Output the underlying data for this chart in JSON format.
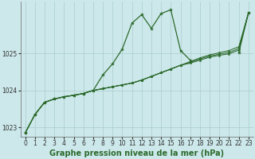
{
  "bg_color": "#cce8ea",
  "grid_color": "#aacccc",
  "line_color": "#2d6a2d",
  "xlabel": "Graphe pression niveau de la mer (hPa)",
  "xlim": [
    -0.5,
    23.5
  ],
  "ylim": [
    1022.75,
    1026.4
  ],
  "yticks": [
    1023,
    1024,
    1025
  ],
  "xticks": [
    0,
    1,
    2,
    3,
    4,
    5,
    6,
    7,
    8,
    9,
    10,
    11,
    12,
    13,
    14,
    15,
    16,
    17,
    18,
    19,
    20,
    21,
    22,
    23
  ],
  "main_curve": [
    1022.85,
    1023.35,
    1023.68,
    1023.77,
    1023.83,
    1023.87,
    1023.92,
    1024.0,
    1024.42,
    1024.72,
    1025.12,
    1025.82,
    1026.05,
    1025.68,
    1026.08,
    1026.18,
    1025.08,
    1024.82,
    null,
    null,
    null,
    null,
    1025.02,
    1026.1
  ],
  "line_a": [
    1022.85,
    1023.35,
    1023.68,
    1023.77,
    1023.83,
    1023.87,
    1023.92,
    1024.0,
    1024.05,
    1024.1,
    1024.15,
    1024.2,
    1024.28,
    1024.38,
    1024.48,
    1024.58,
    1024.68,
    1024.78,
    1024.88,
    1024.96,
    1025.02,
    1025.08,
    1025.18,
    1026.1
  ],
  "line_b": [
    1022.85,
    1023.35,
    1023.68,
    1023.77,
    1023.83,
    1023.87,
    1023.92,
    1024.0,
    1024.05,
    1024.1,
    1024.15,
    1024.2,
    1024.28,
    1024.38,
    1024.48,
    1024.58,
    1024.68,
    1024.76,
    1024.85,
    1024.93,
    1024.98,
    1025.03,
    1025.13,
    1026.1
  ],
  "line_c": [
    1022.85,
    1023.35,
    1023.68,
    1023.77,
    1023.83,
    1023.87,
    1023.92,
    1024.0,
    1024.05,
    1024.1,
    1024.15,
    1024.2,
    1024.28,
    1024.38,
    1024.48,
    1024.58,
    1024.68,
    1024.74,
    1024.82,
    1024.9,
    1024.95,
    1024.99,
    1025.09,
    1026.1
  ],
  "xlabel_fontsize": 7,
  "tick_fontsize": 5.5,
  "lw_main": 0.9,
  "lw_sub": 0.75,
  "marker_size": 3.0
}
